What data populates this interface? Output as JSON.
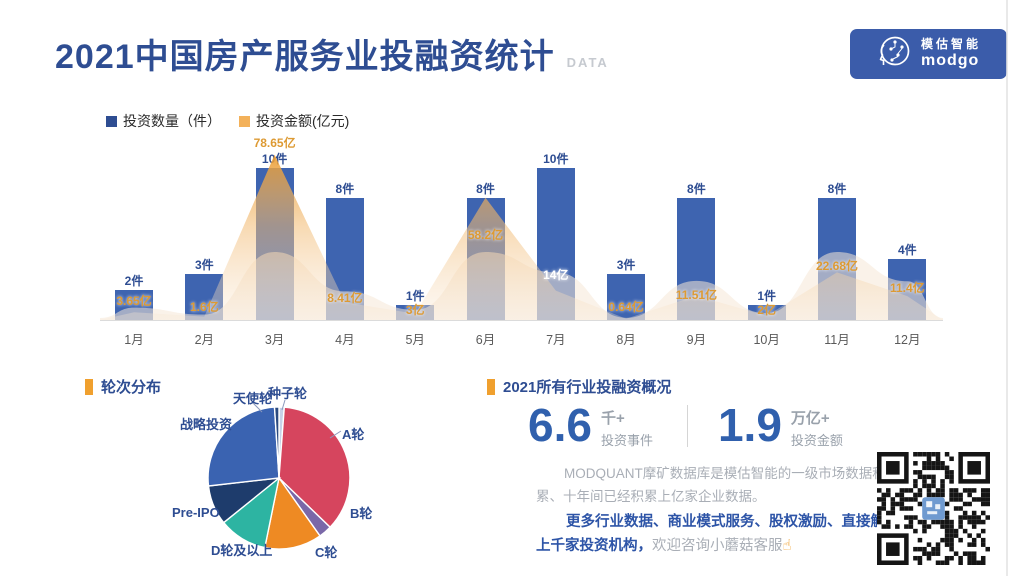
{
  "header": {
    "title": "2021中国房产服务业投融资统计",
    "suffix": "DATA",
    "logo": {
      "brand_cn": "模估智能",
      "brand_en": "modgo",
      "bg": "#3b5caa"
    }
  },
  "legend": [
    {
      "label": "投资数量（件）",
      "color": "#2e4d92"
    },
    {
      "label": "投资金额(亿元)",
      "color": "#f3b15a"
    }
  ],
  "chart_data": [
    {
      "type": "bar",
      "title": "2021中国房产服务业投融资统计",
      "categories": [
        "1月",
        "2月",
        "3月",
        "4月",
        "5月",
        "6月",
        "7月",
        "8月",
        "9月",
        "10月",
        "11月",
        "12月"
      ],
      "series": [
        {
          "name": "投资数量（件）",
          "type": "bar",
          "color": "#3e64b0",
          "values": [
            2,
            3,
            10,
            8,
            1,
            8,
            10,
            3,
            8,
            1,
            8,
            4
          ],
          "labels": [
            "2件",
            "3件",
            "10件",
            "8件",
            "1件",
            "8件",
            "10件",
            "3件",
            "8件",
            "1件",
            "8件",
            "4件"
          ]
        },
        {
          "name": "投资金额(亿元)",
          "type": "area",
          "color": "#f0a23c",
          "values": [
            3.65,
            1.6,
            78.65,
            8.41,
            3,
            58.2,
            14,
            0.64,
            11.51,
            2,
            22.68,
            11.4
          ],
          "labels": [
            "3.65亿",
            "1.6亿",
            "78.65亿",
            "8.41亿",
            "3亿",
            "58.2亿",
            "14亿",
            "0.64亿",
            "11.51亿",
            "2亿",
            "22.68亿",
            "11.4亿"
          ],
          "label_color": "#dd9a33",
          "label_color_overrides": {
            "6": "#ffffff"
          }
        }
      ],
      "legend_position": "top-left",
      "grid": false,
      "ylim_counts": [
        0,
        10
      ],
      "ylim_amount": [
        0,
        80
      ]
    },
    {
      "type": "pie",
      "title": "轮次分布",
      "slices": [
        {
          "name": "种子轮",
          "pct": 1.2,
          "color": "#c7d2e8"
        },
        {
          "name": "A轮",
          "pct": 36,
          "color": "#d6455e"
        },
        {
          "name": "B轮",
          "pct": 3,
          "color": "#7a68a8"
        },
        {
          "name": "C轮",
          "pct": 13,
          "color": "#ee8a23"
        },
        {
          "name": "D轮及以上",
          "pct": 11,
          "color": "#2db4a2"
        },
        {
          "name": "Pre-IPO",
          "pct": 9,
          "color": "#1e3c6c"
        },
        {
          "name": "战略投资",
          "pct": 25.8,
          "color": "#3a63b1"
        },
        {
          "name": "天使轮",
          "pct": 1,
          "color": "#2a4a80"
        }
      ],
      "legend_position": "labels-around"
    }
  ],
  "rounds": {
    "heading": "轮次分布"
  },
  "overview": {
    "heading": "2021所有行业投融资概况",
    "stats": [
      {
        "value": "6.6",
        "unit": "千+",
        "label": "投资事件"
      },
      {
        "value": "1.9",
        "unit": "万亿+",
        "label": "投资金额"
      }
    ],
    "desc_line1": "MODQUANT摩矿数据库是模估智能的一级市场数据积",
    "desc_line2": "累、十年间已经积累上亿家企业数据。",
    "promo_line1": "更多行业数据、商业模式服务、股权激励、直接触达",
    "promo_line2_strong": "上千家投资机构，",
    "promo_line2_rest": "欢迎咨询小蘑菇客服",
    "pointer_icon": "☝"
  },
  "colors": {
    "title_blue": "#2e4d92",
    "accent_orange": "#f0a02e",
    "stat_blue": "#3060ad",
    "bar_blue": "#3e64b0",
    "amount_gold": "#dd9a33"
  }
}
